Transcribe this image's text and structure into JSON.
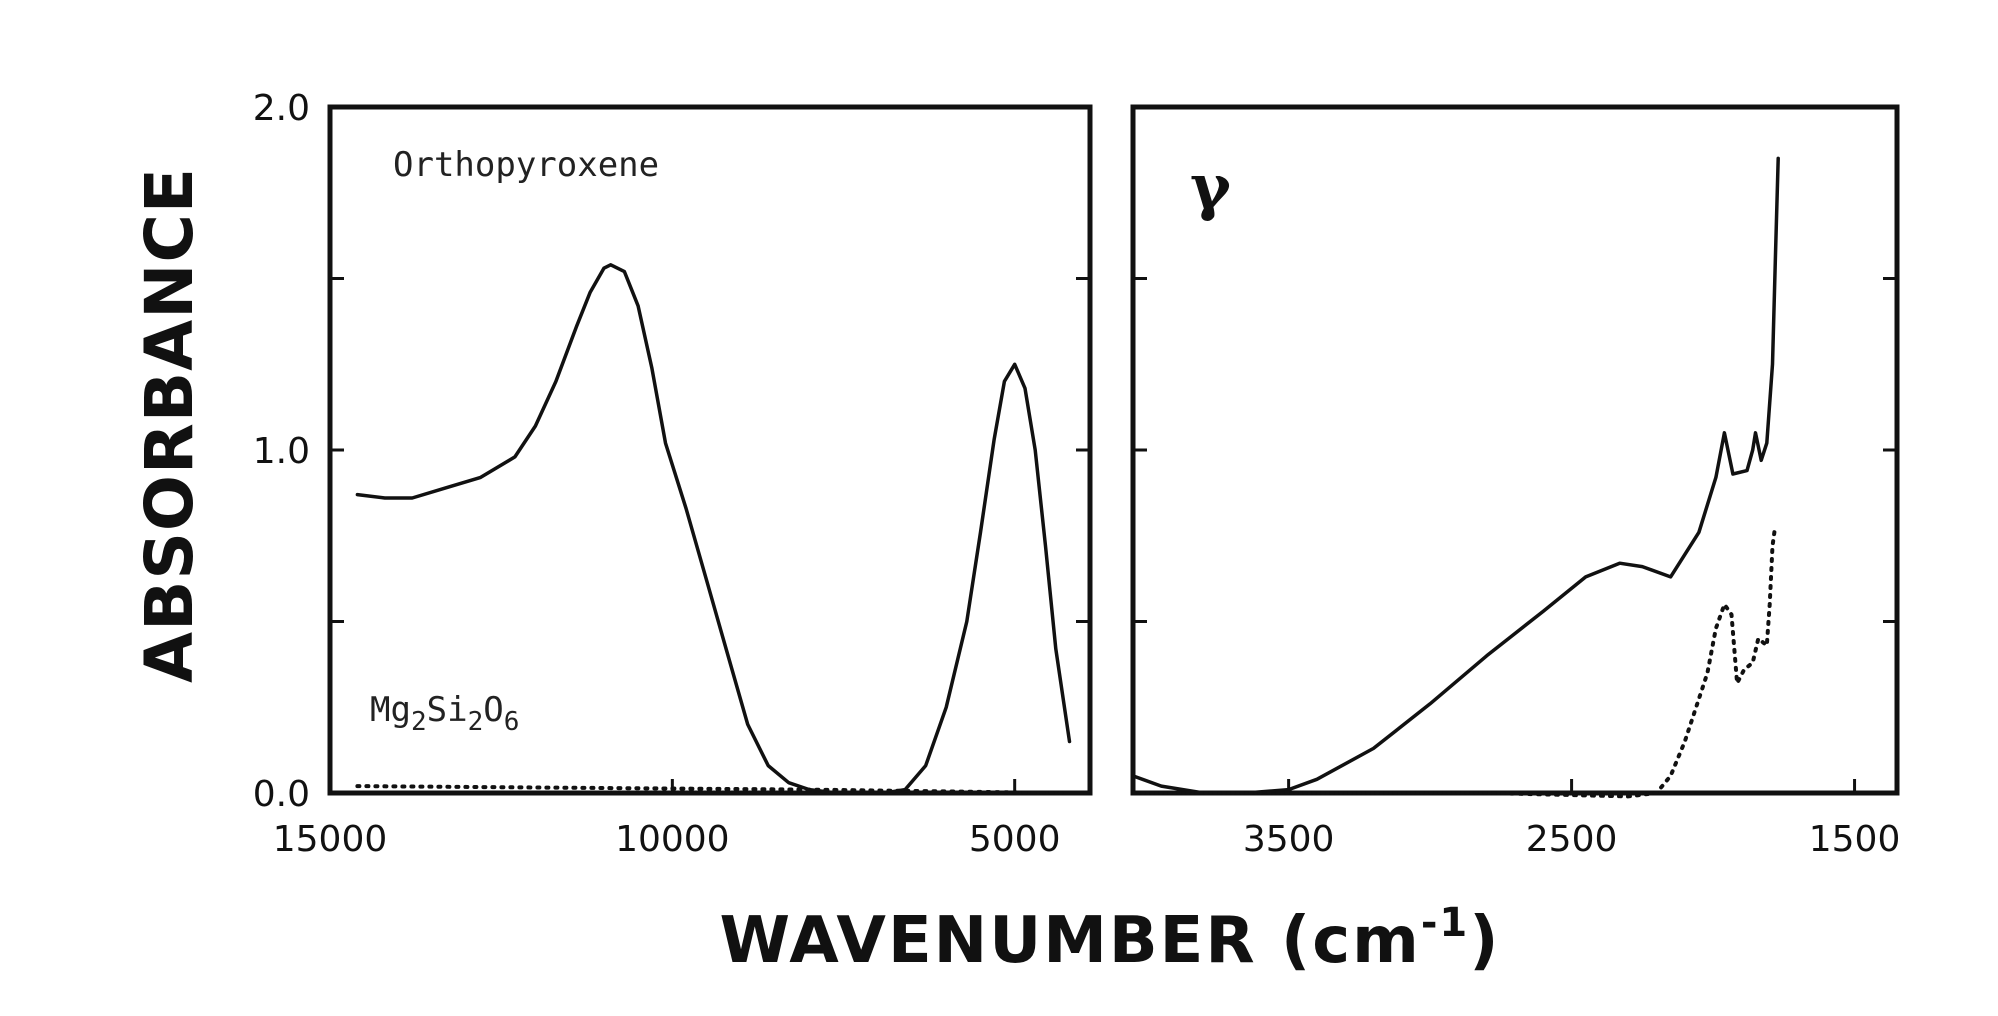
{
  "chart_data": {
    "type": "line",
    "ylabel": "ABSORBANCE",
    "xlabel_main": "WAVENUMBER (cm",
    "xlabel_sup": "-1",
    "xlabel_close": ")",
    "ylim": [
      0.0,
      2.0
    ],
    "yticks": [
      0.0,
      0.5,
      1.0,
      1.5,
      2.0
    ],
    "ytick_labels": [
      "0.0",
      "1.0",
      "2.0"
    ],
    "panels": [
      {
        "id": "left",
        "label": "Orthopyroxene",
        "sublabel_parts": [
          {
            "t": "Mg",
            "sub": false
          },
          {
            "t": "2",
            "sub": true
          },
          {
            "t": "Si",
            "sub": false
          },
          {
            "t": "2",
            "sub": true
          },
          {
            "t": "O",
            "sub": false
          },
          {
            "t": "6",
            "sub": true
          }
        ],
        "xlim": [
          15000,
          3900
        ],
        "xtick_labels": [
          "15000",
          "10000",
          "5000"
        ],
        "xticks": [
          15000,
          10000,
          5000
        ],
        "series": [
          {
            "style": "solid",
            "points": [
              [
                14600,
                0.87
              ],
              [
                14200,
                0.86
              ],
              [
                13800,
                0.86
              ],
              [
                13300,
                0.89
              ],
              [
                12800,
                0.92
              ],
              [
                12300,
                0.98
              ],
              [
                12000,
                1.07
              ],
              [
                11700,
                1.2
              ],
              [
                11400,
                1.36
              ],
              [
                11200,
                1.46
              ],
              [
                11000,
                1.53
              ],
              [
                10900,
                1.54
              ],
              [
                10700,
                1.52
              ],
              [
                10500,
                1.42
              ],
              [
                10300,
                1.24
              ],
              [
                10100,
                1.02
              ],
              [
                9800,
                0.83
              ],
              [
                9500,
                0.62
              ],
              [
                9200,
                0.41
              ],
              [
                8900,
                0.2
              ],
              [
                8600,
                0.08
              ],
              [
                8300,
                0.03
              ],
              [
                8000,
                0.01
              ],
              [
                7600,
                0.0
              ],
              [
                7200,
                0.0
              ],
              [
                6900,
                0.0
              ],
              [
                6600,
                0.01
              ],
              [
                6300,
                0.08
              ],
              [
                6000,
                0.25
              ],
              [
                5700,
                0.5
              ],
              [
                5500,
                0.76
              ],
              [
                5300,
                1.03
              ],
              [
                5150,
                1.2
              ],
              [
                5000,
                1.25
              ],
              [
                4850,
                1.18
              ],
              [
                4700,
                1.0
              ],
              [
                4550,
                0.72
              ],
              [
                4400,
                0.42
              ],
              [
                4200,
                0.15
              ]
            ]
          },
          {
            "style": "dotted",
            "points": [
              [
                14600,
                0.02
              ],
              [
                8000,
                0.01
              ],
              [
                4300,
                0.0
              ]
            ]
          }
        ]
      },
      {
        "id": "right",
        "label": "γ",
        "xlim": [
          4050,
          1350
        ],
        "xtick_labels": [
          "3500",
          "2500",
          "1500"
        ],
        "xticks": [
          3500,
          2500,
          1500
        ],
        "series": [
          {
            "style": "solid",
            "points": [
              [
                4050,
                0.05
              ],
              [
                3950,
                0.02
              ],
              [
                3800,
                0.0
              ],
              [
                3650,
                0.0
              ],
              [
                3500,
                0.01
              ],
              [
                3400,
                0.04
              ],
              [
                3200,
                0.13
              ],
              [
                3000,
                0.26
              ],
              [
                2800,
                0.4
              ],
              [
                2600,
                0.53
              ],
              [
                2450,
                0.63
              ],
              [
                2330,
                0.67
              ],
              [
                2250,
                0.66
              ],
              [
                2150,
                0.63
              ],
              [
                2050,
                0.76
              ],
              [
                1990,
                0.92
              ],
              [
                1960,
                1.05
              ],
              [
                1930,
                0.93
              ],
              [
                1880,
                0.94
              ],
              [
                1860,
                1.0
              ],
              [
                1850,
                1.05
              ],
              [
                1830,
                0.97
              ],
              [
                1810,
                1.02
              ],
              [
                1790,
                1.25
              ],
              [
                1780,
                1.55
              ],
              [
                1770,
                1.85
              ]
            ]
          },
          {
            "style": "dotted",
            "points": [
              [
                4050,
                0.0
              ],
              [
                3500,
                0.0
              ],
              [
                2800,
                0.0
              ],
              [
                2300,
                -0.01
              ],
              [
                2200,
                0.0
              ],
              [
                2150,
                0.05
              ],
              [
                2100,
                0.15
              ],
              [
                2060,
                0.25
              ],
              [
                2020,
                0.35
              ],
              [
                1990,
                0.48
              ],
              [
                1960,
                0.55
              ],
              [
                1935,
                0.52
              ],
              [
                1915,
                0.32
              ],
              [
                1890,
                0.36
              ],
              [
                1860,
                0.38
              ],
              [
                1840,
                0.45
              ],
              [
                1810,
                0.43
              ],
              [
                1800,
                0.55
              ],
              [
                1790,
                0.72
              ],
              [
                1780,
                0.78
              ]
            ]
          }
        ]
      }
    ]
  }
}
